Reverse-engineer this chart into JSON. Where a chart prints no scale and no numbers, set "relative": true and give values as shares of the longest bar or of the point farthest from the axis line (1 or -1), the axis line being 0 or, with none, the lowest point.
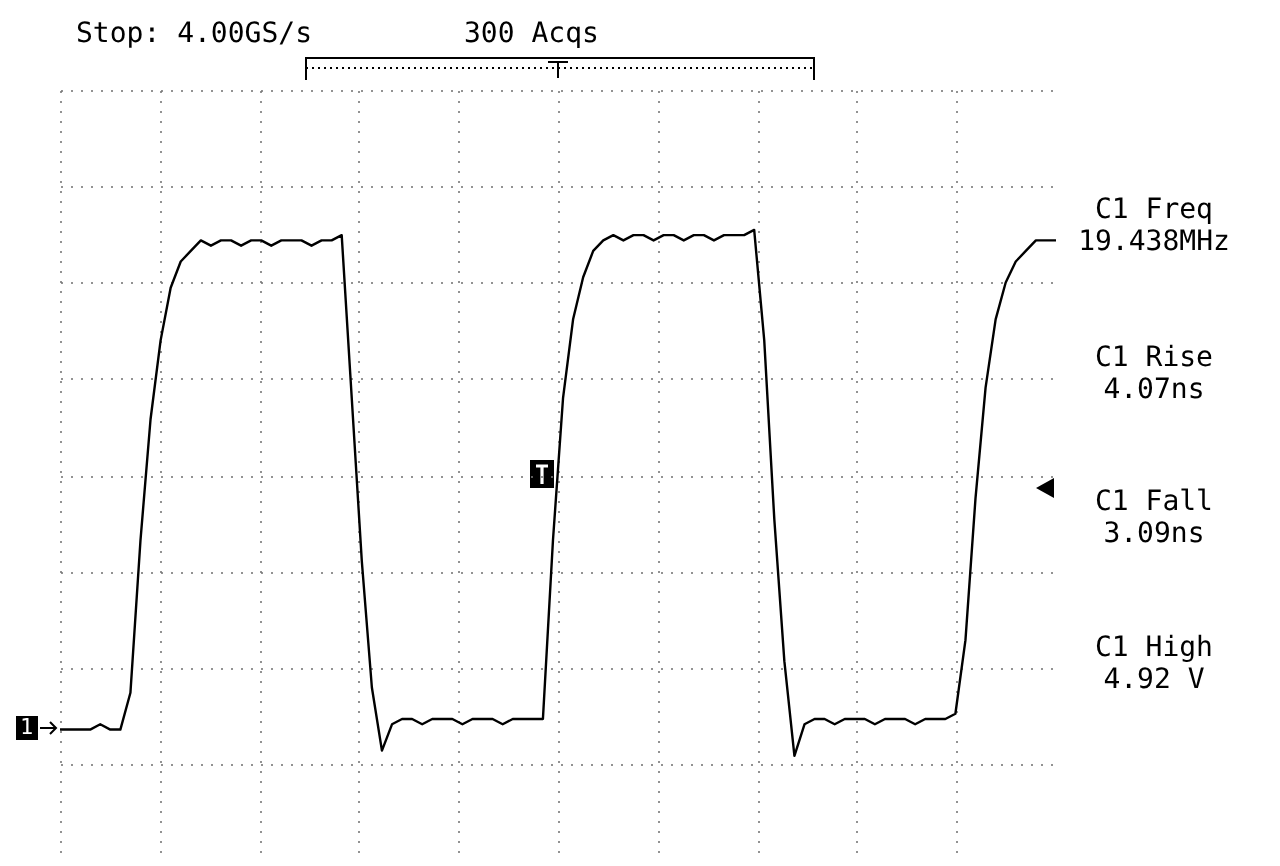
{
  "chart_data": {
    "type": "line",
    "relative": true,
    "grid": true,
    "categories": [
      null,
      null,
      null,
      null,
      null,
      null,
      null,
      null,
      null,
      null,
      null,
      null,
      null,
      null,
      null,
      null,
      null,
      null,
      null,
      null,
      null,
      null,
      null,
      null,
      null,
      null,
      null,
      null,
      null,
      null,
      null,
      null,
      null,
      null,
      null,
      null,
      null,
      null,
      null,
      null,
      null,
      null,
      null,
      null,
      null,
      null,
      null,
      null,
      null,
      null,
      null,
      null,
      null,
      null,
      null,
      null,
      null,
      null,
      null,
      null,
      null,
      null,
      null,
      null,
      null,
      null,
      null,
      null,
      null,
      null,
      null,
      null,
      null,
      null,
      null,
      null,
      null,
      null,
      null,
      null,
      null,
      null,
      null,
      null,
      null,
      null,
      null,
      null,
      null,
      null,
      null,
      null,
      null,
      null,
      null,
      null,
      null,
      null,
      null,
      null
    ],
    "series": [
      {
        "color": "#000000",
        "values": [
          0.05,
          0.05,
          0.05,
          0.05,
          0.06,
          0.05,
          0.05,
          0.12,
          0.41,
          0.64,
          0.79,
          0.89,
          0.94,
          0.96,
          0.98,
          0.97,
          0.98,
          0.98,
          0.97,
          0.98,
          0.98,
          0.97,
          0.98,
          0.98,
          0.98,
          0.97,
          0.98,
          0.98,
          0.99,
          0.68,
          0.37,
          0.13,
          0.01,
          0.06,
          0.07,
          0.07,
          0.06,
          0.07,
          0.07,
          0.07,
          0.06,
          0.07,
          0.07,
          0.07,
          0.06,
          0.07,
          0.07,
          0.07,
          0.07,
          0.41,
          0.68,
          0.83,
          0.91,
          0.96,
          0.98,
          0.99,
          0.98,
          0.99,
          0.99,
          0.98,
          0.99,
          0.99,
          0.98,
          0.99,
          0.99,
          0.98,
          0.99,
          0.99,
          0.99,
          1,
          0.79,
          0.45,
          0.18,
          0,
          0.06,
          0.07,
          0.07,
          0.06,
          0.07,
          0.07,
          0.07,
          0.06,
          0.07,
          0.07,
          0.07,
          0.06,
          0.07,
          0.07,
          0.07,
          0.08,
          0.22,
          0.49,
          0.7,
          0.83,
          0.9,
          0.94,
          0.96,
          0.98,
          0.98,
          0.98
        ]
      }
    ],
    "annotations": [
      "Stop: 4.00GS/s",
      "300 Acqs",
      "C1 Freq",
      "19.438MHz",
      "C1 Rise",
      "4.07ns",
      "C1 Fall",
      "3.09ns",
      "C1 High",
      "4.92 V",
      "1"
    ]
  }
}
